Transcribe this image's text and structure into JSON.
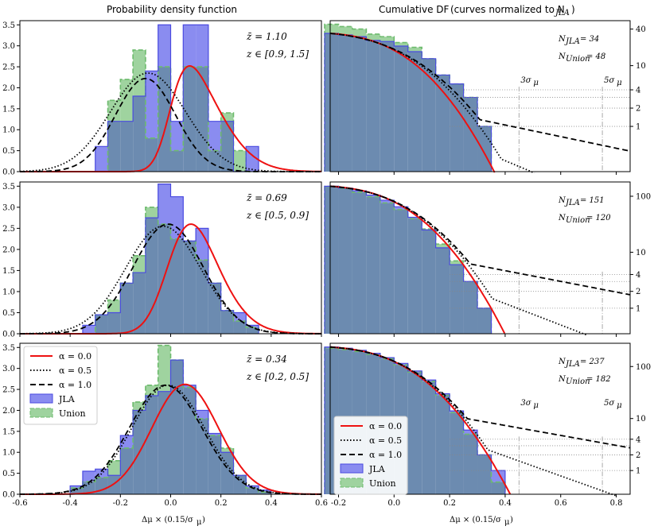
{
  "figure": {
    "left_title": "Probability density function",
    "right_title": "Cumulative DF",
    "right_title_note": "(curves normalized to N",
    "right_title_note_sub": "JLA",
    "right_title_note_end": ")",
    "xlabel_left": "Δμ × (0.15/σ",
    "xlabel_right": "Δμ × (0.15/σ",
    "xlabel_sub": "μ",
    "xlabel_end": ")"
  },
  "colors": {
    "jla_fill": "#8a8cf0",
    "jla_edge": "#4a4ae0",
    "union_fill": "#9fd39f",
    "union_edge": "#6dbb6d",
    "overlap": "#6c8bb0",
    "alpha0": "#ee1111",
    "alpha05": "#000000",
    "alpha1": "#000000"
  },
  "legend": {
    "items": [
      {
        "label": "α = 0.0",
        "kind": "line",
        "style": "solid",
        "color": "#ee1111"
      },
      {
        "label": "α = 0.5",
        "kind": "line",
        "style": "dotted",
        "color": "#000000"
      },
      {
        "label": "α = 1.0",
        "kind": "line",
        "style": "dashed",
        "color": "#000000"
      },
      {
        "label": "JLA",
        "kind": "patch",
        "fill": "#8a8cf0",
        "edge": "#4a4ae0"
      },
      {
        "label": "Union",
        "kind": "patch",
        "fill": "#9fd39f",
        "edge": "#6dbb6d"
      }
    ]
  },
  "chart_data": [
    {
      "type": "bar",
      "panel": "pdf-top",
      "title": "Probability density function",
      "zbar": "z̄ = 1.10",
      "zrange": "z ∈ [0.9, 1.5]",
      "xlim": [
        -0.6,
        0.6
      ],
      "ylim": [
        0,
        3.6
      ],
      "xticks": [],
      "yticks": [
        0.0,
        0.5,
        1.0,
        1.5,
        2.0,
        2.5,
        3.0,
        3.5
      ],
      "bin_edges": [
        -0.3,
        -0.25,
        -0.2,
        -0.15,
        -0.1,
        -0.05,
        0.0,
        0.05,
        0.1,
        0.15,
        0.2,
        0.25,
        0.3,
        0.35
      ],
      "series": [
        {
          "name": "JLA",
          "values": [
            0.6,
            1.2,
            1.2,
            1.8,
            2.4,
            3.5,
            1.2,
            3.5,
            3.5,
            1.2,
            1.2,
            0.0,
            0.6
          ]
        },
        {
          "name": "Union",
          "values": [
            0.0,
            1.7,
            2.2,
            2.9,
            0.8,
            2.5,
            0.5,
            2.5,
            2.5,
            0.5,
            1.4,
            0.5,
            0.0
          ]
        }
      ],
      "curves": [
        {
          "name": "α = 0.0",
          "mu": 0.0,
          "sigma": 0.16,
          "skew": 3.0,
          "amp": 2.52
        },
        {
          "name": "α = 0.5",
          "mu": -0.09,
          "sigma": 0.15,
          "skew": 0.0,
          "amp": 2.35
        },
        {
          "name": "α = 1.0",
          "mu": -0.1,
          "sigma": 0.12,
          "skew": 0.0,
          "amp": 2.22
        }
      ]
    },
    {
      "type": "line",
      "panel": "cdf-top",
      "n_jla": "N",
      "n_jla_sub": "JLA",
      "n_jla_val": "= 34",
      "n_union": "N",
      "n_union_sub": "Union",
      "n_union_val": "= 48",
      "xlim": [
        -0.23,
        0.85
      ],
      "ylog": [
        0.18,
        55
      ],
      "yticks_right": [
        "40",
        "10",
        "4",
        "2",
        "1"
      ],
      "yticks_right_vals": [
        40,
        10,
        4,
        2,
        1
      ],
      "sigma_lines": [
        {
          "label": "3σ",
          "sub": "μ",
          "x": 0.45
        },
        {
          "label": "5σ",
          "sub": "μ",
          "x": 0.75
        }
      ],
      "hlines": [
        4,
        3,
        2,
        1
      ],
      "bins": [
        -0.25,
        -0.2,
        -0.15,
        -0.1,
        -0.05,
        0.0,
        0.05,
        0.1,
        0.15,
        0.2,
        0.25,
        0.3,
        0.35
      ],
      "jla_counts": [
        34,
        32,
        30,
        26,
        25,
        21,
        17,
        13,
        7,
        5,
        3,
        1
      ],
      "union_counts": [
        48,
        44,
        40,
        33,
        30,
        24,
        20,
        13,
        7,
        5,
        3,
        1
      ],
      "curves": [
        {
          "name": "α = 0.0",
          "N": 34,
          "mu": 0.0,
          "sigma": 0.14,
          "tail": 0.0
        },
        {
          "name": "α = 0.5",
          "N": 34,
          "mu": 0.0,
          "sigma": 0.16,
          "tail": 0.5
        },
        {
          "name": "α = 1.0",
          "N": 34,
          "mu": 0.0,
          "sigma": 0.17,
          "tail": 1.0
        }
      ]
    },
    {
      "type": "bar",
      "panel": "pdf-mid",
      "zbar": "z̄ = 0.69",
      "zrange": "z ∈ [0.5, 0.9]",
      "xlim": [
        -0.6,
        0.6
      ],
      "ylim": [
        0,
        3.6
      ],
      "yticks": [
        0.0,
        0.5,
        1.0,
        1.5,
        2.0,
        2.5,
        3.0,
        3.5
      ],
      "bin_edges": [
        -0.35,
        -0.3,
        -0.25,
        -0.2,
        -0.15,
        -0.1,
        -0.05,
        0.0,
        0.05,
        0.1,
        0.15,
        0.2,
        0.25,
        0.3,
        0.35
      ],
      "series": [
        {
          "name": "JLA",
          "values": [
            0.2,
            0.45,
            0.5,
            1.2,
            1.45,
            2.75,
            3.55,
            3.25,
            2.2,
            2.5,
            1.2,
            0.55,
            0.5,
            0.2
          ]
        },
        {
          "name": "Union",
          "values": [
            0.0,
            0.45,
            0.8,
            1.2,
            1.85,
            3.0,
            2.6,
            2.25,
            2.2,
            1.75,
            1.2,
            0.55,
            0.3,
            0.15
          ]
        }
      ],
      "curves": [
        {
          "name": "α = 0.0",
          "mu": 0.0,
          "sigma": 0.15,
          "skew": 1.8,
          "amp": 2.6
        },
        {
          "name": "α = 0.5",
          "mu": -0.03,
          "sigma": 0.15,
          "skew": 0.0,
          "amp": 2.55
        },
        {
          "name": "α = 1.0",
          "mu": -0.01,
          "sigma": 0.14,
          "skew": 0.0,
          "amp": 2.6
        }
      ]
    },
    {
      "type": "line",
      "panel": "cdf-mid",
      "n_jla": "N",
      "n_jla_sub": "JLA",
      "n_jla_val": "= 151",
      "n_union": "N",
      "n_union_sub": "Union",
      "n_union_val": "= 120",
      "xlim": [
        -0.23,
        0.85
      ],
      "ylog": [
        0.35,
        180
      ],
      "yticks_right": [
        "100",
        "10",
        "4",
        "2",
        "1"
      ],
      "yticks_right_vals": [
        100,
        10,
        4,
        2,
        1
      ],
      "hlines": [
        4,
        3,
        2,
        1
      ],
      "sigma_lines": [
        {
          "x": 0.45
        },
        {
          "x": 0.75
        }
      ],
      "bins": [
        -0.25,
        -0.2,
        -0.15,
        -0.1,
        -0.05,
        0.0,
        0.05,
        0.1,
        0.15,
        0.2,
        0.25,
        0.3,
        0.35
      ],
      "jla_counts": [
        151,
        140,
        125,
        105,
        85,
        65,
        42,
        25,
        12,
        6,
        3,
        1
      ],
      "union_counts": [
        150,
        138,
        118,
        98,
        76,
        58,
        40,
        26,
        14,
        7,
        3,
        1
      ],
      "curves": [
        {
          "name": "α = 0.0",
          "N": 151,
          "mu": 0.0,
          "sigma": 0.14,
          "tail": 0.0
        },
        {
          "name": "α = 0.5",
          "N": 151,
          "mu": 0.0,
          "sigma": 0.15,
          "tail": 0.5
        },
        {
          "name": "α = 1.0",
          "N": 151,
          "mu": 0.0,
          "sigma": 0.155,
          "tail": 1.0
        }
      ]
    },
    {
      "type": "bar",
      "panel": "pdf-bot",
      "zbar": "z̄ = 0.34",
      "zrange": "z ∈ [0.2, 0.5]",
      "xlim": [
        -0.6,
        0.6
      ],
      "ylim": [
        0,
        3.6
      ],
      "xticks": [
        -0.6,
        -0.4,
        -0.2,
        0.0,
        0.2,
        0.4,
        0.6
      ],
      "yticks": [
        0.0,
        0.5,
        1.0,
        1.5,
        2.0,
        2.5,
        3.0,
        3.5
      ],
      "bin_edges": [
        -0.4,
        -0.35,
        -0.3,
        -0.25,
        -0.2,
        -0.15,
        -0.1,
        -0.05,
        0.0,
        0.05,
        0.1,
        0.15,
        0.2,
        0.25,
        0.3,
        0.35,
        0.4
      ],
      "series": [
        {
          "name": "JLA",
          "values": [
            0.2,
            0.55,
            0.6,
            0.45,
            1.4,
            2.0,
            2.35,
            2.45,
            3.2,
            2.6,
            2.0,
            1.45,
            1.0,
            0.45,
            0.2,
            0.1
          ]
        },
        {
          "name": "Union",
          "values": [
            0.15,
            0.3,
            0.4,
            0.8,
            1.1,
            2.2,
            2.6,
            3.55,
            3.2,
            2.55,
            1.8,
            1.4,
            1.1,
            0.45,
            0.15,
            0.05
          ]
        }
      ],
      "curves": [
        {
          "name": "α = 0.0",
          "mu": 0.0,
          "sigma": 0.145,
          "skew": 0.6,
          "amp": 2.62
        },
        {
          "name": "α = 0.5",
          "mu": -0.01,
          "sigma": 0.145,
          "skew": 0.0,
          "amp": 2.6
        },
        {
          "name": "α = 1.0",
          "mu": -0.02,
          "sigma": 0.145,
          "skew": 0.0,
          "amp": 2.6
        }
      ]
    },
    {
      "type": "line",
      "panel": "cdf-bot",
      "n_jla": "N",
      "n_jla_sub": "JLA",
      "n_jla_val": "= 237",
      "n_union": "N",
      "n_union_sub": "Union",
      "n_union_val": "= 182",
      "xlim": [
        -0.23,
        0.85
      ],
      "ylog": [
        0.35,
        280
      ],
      "xticks": [
        -0.2,
        0.0,
        0.2,
        0.4,
        0.6,
        0.8
      ],
      "yticks_right": [
        "100",
        "10",
        "4",
        "2",
        "1"
      ],
      "yticks_right_vals": [
        100,
        10,
        4,
        2,
        1
      ],
      "hlines": [
        4,
        3,
        2,
        1
      ],
      "sigma_lines": [
        {
          "label": "3σ",
          "sub": "μ",
          "x": 0.45
        },
        {
          "label": "5σ",
          "sub": "μ",
          "x": 0.75
        }
      ],
      "bins": [
        -0.25,
        -0.2,
        -0.15,
        -0.1,
        -0.05,
        0.0,
        0.05,
        0.1,
        0.15,
        0.2,
        0.25,
        0.3,
        0.35,
        0.4
      ],
      "jla_counts": [
        237,
        225,
        205,
        180,
        148,
        115,
        82,
        55,
        30,
        14,
        6,
        2,
        1
      ],
      "union_counts": [
        225,
        212,
        195,
        172,
        142,
        108,
        78,
        52,
        28,
        13,
        5,
        2,
        0.6
      ],
      "curves": [
        {
          "name": "α = 0.0",
          "N": 237,
          "mu": 0.0,
          "sigma": 0.14,
          "tail": 0.0
        },
        {
          "name": "α = 0.5",
          "N": 237,
          "mu": 0.0,
          "sigma": 0.145,
          "tail": 0.5
        },
        {
          "name": "α = 1.0",
          "N": 237,
          "mu": 0.0,
          "sigma": 0.15,
          "tail": 1.0
        }
      ]
    }
  ]
}
